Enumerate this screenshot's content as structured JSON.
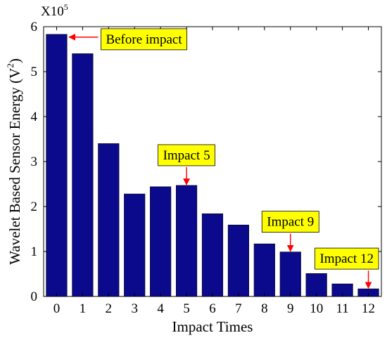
{
  "chart_data": {
    "type": "bar",
    "title": "",
    "xlabel": "Impact Times",
    "ylabel": "Wavelet Based Sensor Energy (V²)",
    "ylabel_main": "Wavelet Based Sensor Energy (V",
    "ylabel_sup": "2",
    "ylabel_close": ")",
    "y_multiplier": "X10",
    "y_multiplier_exp": "5",
    "categories": [
      "0",
      "1",
      "2",
      "3",
      "4",
      "5",
      "6",
      "7",
      "8",
      "9",
      "10",
      "11",
      "12"
    ],
    "values": [
      5.83,
      5.4,
      3.4,
      2.28,
      2.44,
      2.47,
      1.84,
      1.59,
      1.17,
      0.99,
      0.51,
      0.28,
      0.17
    ],
    "ylim": [
      0,
      6
    ],
    "yticks": [
      "0",
      "1",
      "2",
      "3",
      "4",
      "5",
      "6"
    ],
    "grid": false,
    "colors": {
      "bar": "#0b0a8c",
      "annotation_bg": "#ffff00",
      "arrow": "#ff0000"
    },
    "annotations": [
      {
        "text": "Before impact",
        "target_index": 0,
        "arrow_direction": "left"
      },
      {
        "text": "Impact 5",
        "target_index": 5,
        "arrow_direction": "down"
      },
      {
        "text": "Impact 9",
        "target_index": 9,
        "arrow_direction": "down"
      },
      {
        "text": "Impact 12",
        "target_index": 12,
        "arrow_direction": "down"
      }
    ]
  }
}
